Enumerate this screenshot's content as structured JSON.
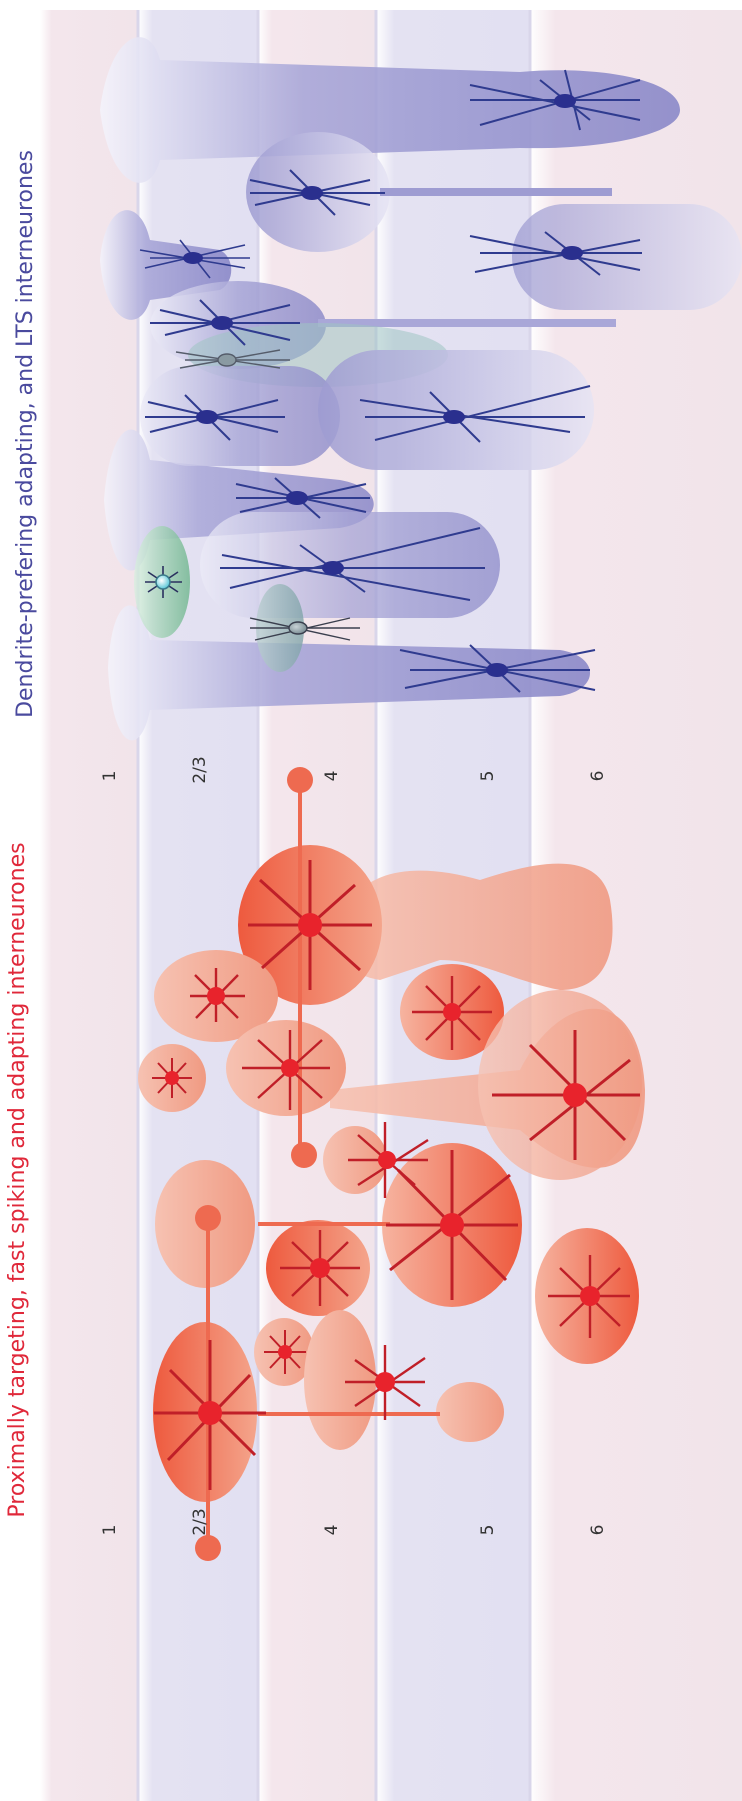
{
  "titles": {
    "top": "Dendrite-prefering adapting, and LTS interneurones",
    "bottom": "Proximally targeting, fast spiking and adapting interneurones"
  },
  "layers": {
    "top": [
      "1",
      "2/3",
      "4",
      "5",
      "6"
    ],
    "bottom": [
      "1",
      "2/3",
      "4",
      "5",
      "6"
    ]
  },
  "colors": {
    "title_top": "#4a4a9e",
    "title_bottom": "#e0283a",
    "purple_body": "#2a2f8e",
    "purple_field": "#8f8fca",
    "red_body": "#e8232c",
    "red_field": "#ef6a4e",
    "green_field": "#7cc09a"
  }
}
